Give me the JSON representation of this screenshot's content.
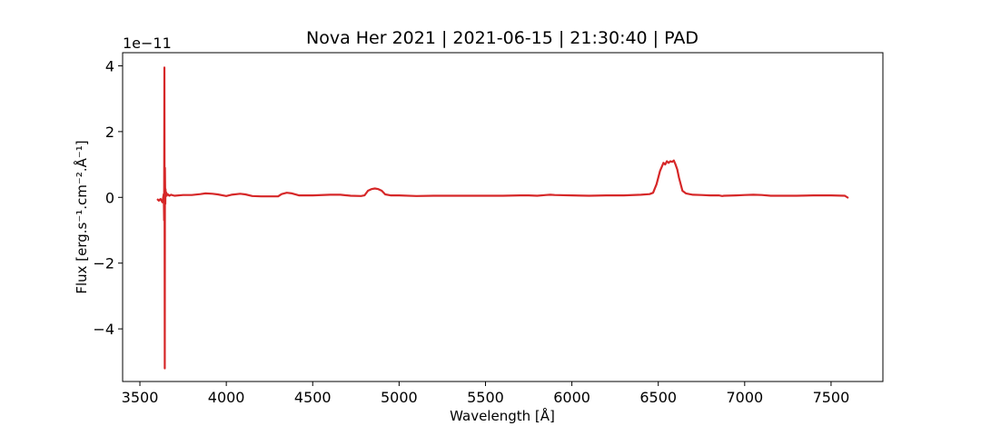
{
  "chart_data": {
    "type": "line",
    "title": "Nova Her 2021 | 2021-06-15 | 21:30:40 | PAD",
    "xlabel": "Wavelength [Å]",
    "ylabel": "Flux [erg.s⁻¹.cm⁻².Å⁻¹]",
    "y_offset_text": "1e−11",
    "xlim": [
      3400,
      7800
    ],
    "ylim": [
      -5.6,
      4.4
    ],
    "y_scale_exponent": -11,
    "x_ticks": [
      3500,
      4000,
      4500,
      5000,
      5500,
      6000,
      6500,
      7000,
      7500
    ],
    "y_ticks": [
      -4,
      -2,
      0,
      2,
      4
    ],
    "y_tick_labels": [
      "−4",
      "−2",
      "0",
      "2",
      "4"
    ],
    "grid": false,
    "line_color": "#d62728",
    "series": [
      {
        "x": [
          3600,
          3610,
          3620,
          3630,
          3638,
          3640,
          3642,
          3644,
          3645,
          3646,
          3647,
          3648,
          3650,
          3652,
          3655,
          3660,
          3670,
          3680,
          3700,
          3750,
          3800,
          3850,
          3880,
          3920,
          3950,
          4000,
          4030,
          4080,
          4110,
          4150,
          4200,
          4250,
          4300,
          4320,
          4350,
          4380,
          4420,
          4500,
          4600,
          4660,
          4720,
          4780,
          4800,
          4820,
          4840,
          4860,
          4880,
          4900,
          4920,
          4950,
          5000,
          5100,
          5200,
          5300,
          5400,
          5500,
          5600,
          5700,
          5750,
          5800,
          5850,
          5875,
          5900,
          6000,
          6100,
          6200,
          6300,
          6400,
          6450,
          6470,
          6490,
          6510,
          6530,
          6540,
          6550,
          6560,
          6570,
          6580,
          6590,
          6600,
          6610,
          6620,
          6640,
          6660,
          6700,
          6750,
          6800,
          6850,
          6870,
          6880,
          6950,
          7000,
          7050,
          7100,
          7150,
          7200,
          7300,
          7400,
          7500,
          7580,
          7600
        ],
        "y": [
          -0.05,
          -0.1,
          -0.05,
          -0.15,
          0.1,
          -0.7,
          3.95,
          -5.2,
          0.9,
          0.3,
          -0.2,
          0.25,
          0.05,
          0.15,
          0.05,
          0.1,
          0.05,
          0.08,
          0.05,
          0.07,
          0.07,
          0.1,
          0.12,
          0.11,
          0.09,
          0.04,
          0.08,
          0.11,
          0.09,
          0.04,
          0.03,
          0.03,
          0.03,
          0.1,
          0.14,
          0.12,
          0.06,
          0.06,
          0.08,
          0.08,
          0.05,
          0.04,
          0.06,
          0.2,
          0.25,
          0.27,
          0.25,
          0.2,
          0.09,
          0.06,
          0.06,
          0.04,
          0.05,
          0.05,
          0.05,
          0.05,
          0.05,
          0.06,
          0.06,
          0.05,
          0.07,
          0.08,
          0.07,
          0.06,
          0.05,
          0.06,
          0.06,
          0.08,
          0.1,
          0.14,
          0.4,
          0.8,
          1.05,
          1.0,
          1.1,
          1.05,
          1.1,
          1.08,
          1.12,
          1.0,
          0.85,
          0.6,
          0.2,
          0.12,
          0.08,
          0.07,
          0.06,
          0.06,
          0.04,
          0.05,
          0.06,
          0.07,
          0.08,
          0.07,
          0.05,
          0.05,
          0.05,
          0.06,
          0.06,
          0.05,
          -0.02
        ]
      }
    ]
  }
}
